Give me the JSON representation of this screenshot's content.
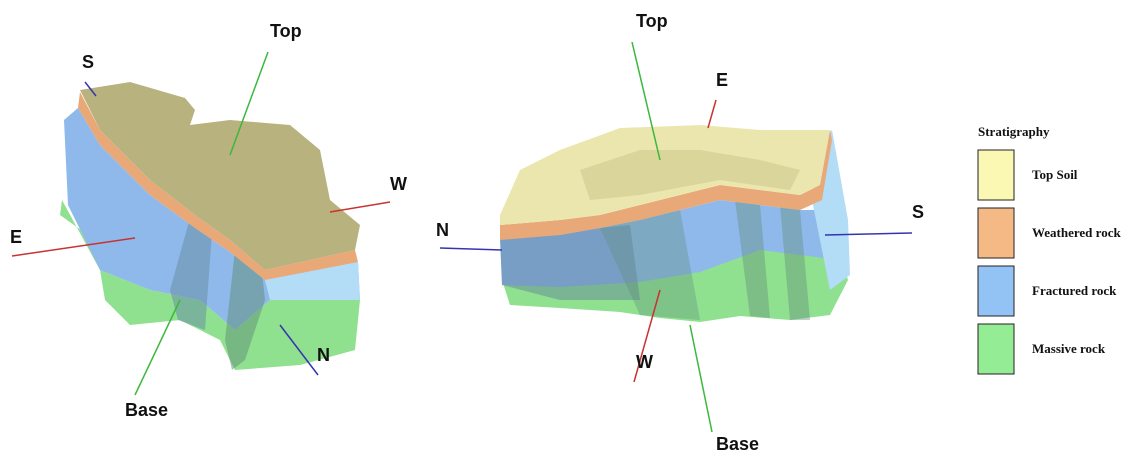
{
  "left_model": {
    "axis_labels": [
      "Top",
      "S",
      "W",
      "E",
      "Base",
      "N"
    ]
  },
  "right_model": {
    "axis_labels": [
      "Top",
      "E",
      "N",
      "S",
      "W",
      "Base"
    ]
  },
  "legend": {
    "title": "Stratigraphy",
    "items": [
      {
        "label": "Top Soil",
        "color": "#fbf8b4"
      },
      {
        "label": "Weathered rock",
        "color": "#f5b985"
      },
      {
        "label": "Fractured rock",
        "color": "#93c3f5"
      },
      {
        "label": "Massive rock",
        "color": "#94ec94"
      }
    ]
  }
}
